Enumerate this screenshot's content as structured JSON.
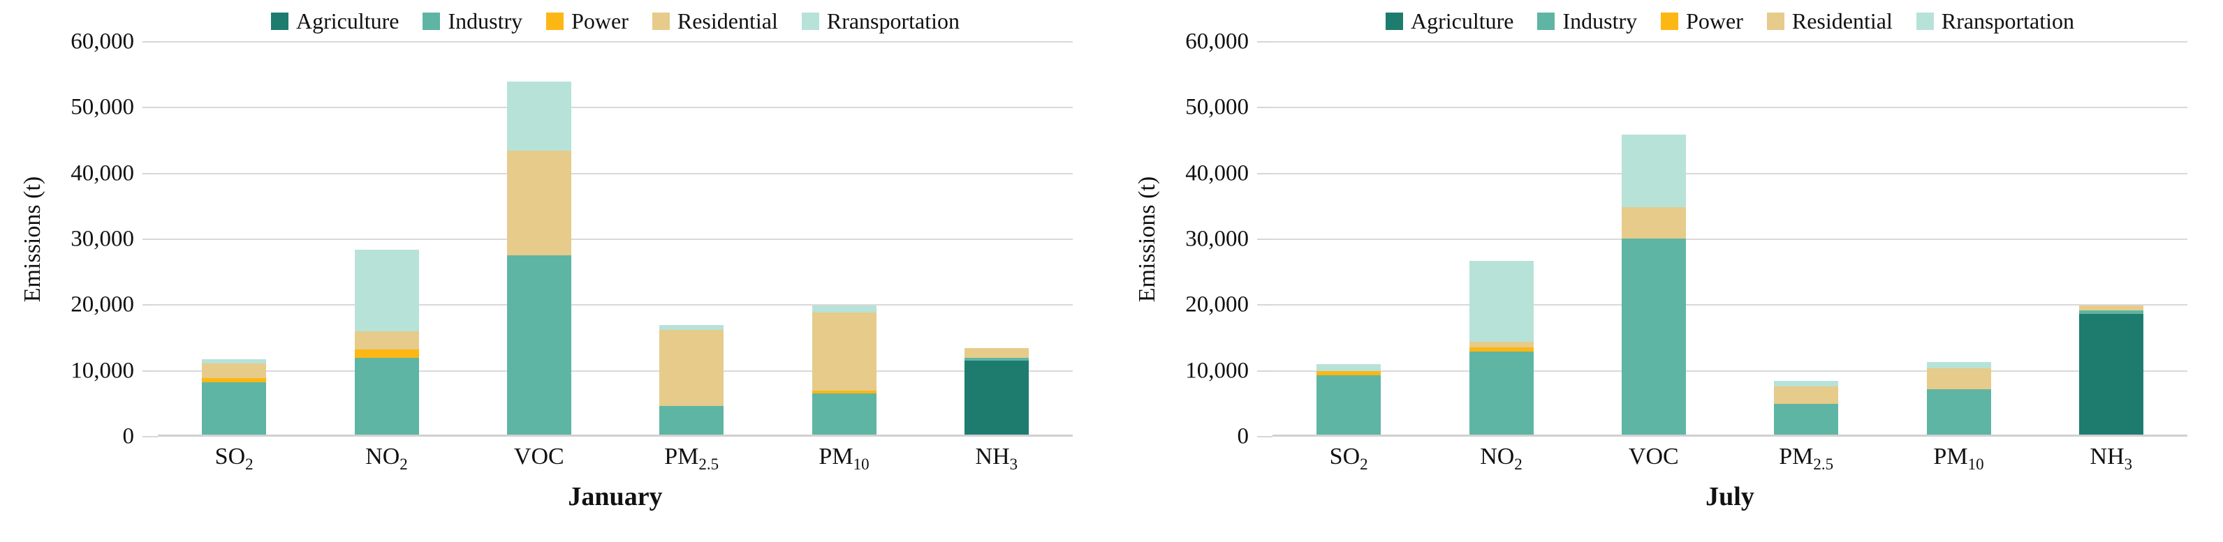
{
  "style": {
    "background": "#ffffff",
    "grid_color": "#d9d9d9",
    "axis_color": "#d0d0d0",
    "text_color": "#111111"
  },
  "chart_data": [
    {
      "type": "bar",
      "stacked": true,
      "title": "January",
      "ylabel": "Emissions (t)",
      "ylim": [
        0,
        60000
      ],
      "ytick_step": 10000,
      "ytick_labels": [
        "0",
        "10,000",
        "20,000",
        "30,000",
        "40,000",
        "50,000",
        "60,000"
      ],
      "grid": true,
      "legend_position": "top",
      "categories": [
        {
          "base": "SO",
          "sub": "2"
        },
        {
          "base": "NO",
          "sub": "2"
        },
        {
          "base": "VOC",
          "sub": ""
        },
        {
          "base": "PM",
          "sub": "2.5"
        },
        {
          "base": "PM",
          "sub": "10"
        },
        {
          "base": "NH",
          "sub": "3"
        }
      ],
      "series": [
        {
          "name": "Agriculture",
          "color": "#1e7c6f",
          "values": [
            0,
            0,
            0,
            0,
            0,
            11200
          ]
        },
        {
          "name": "Industry",
          "color": "#5eb5a4",
          "values": [
            8000,
            11700,
            27200,
            4400,
            6300,
            500
          ]
        },
        {
          "name": "Power",
          "color": "#fdb714",
          "values": [
            600,
            1200,
            0,
            0,
            400,
            0
          ]
        },
        {
          "name": "Residential",
          "color": "#e6cb8b",
          "values": [
            2200,
            2800,
            16000,
            11500,
            11900,
            1500
          ]
        },
        {
          "name": "Rransportation",
          "color": "#b7e2d8",
          "values": [
            600,
            12400,
            10400,
            800,
            1000,
            0
          ]
        }
      ]
    },
    {
      "type": "bar",
      "stacked": true,
      "title": "July",
      "ylabel": "Emissions (t)",
      "ylim": [
        0,
        60000
      ],
      "ytick_step": 10000,
      "ytick_labels": [
        "0",
        "10,000",
        "20,000",
        "30,000",
        "40,000",
        "50,000",
        "60,000"
      ],
      "grid": true,
      "legend_position": "top",
      "categories": [
        {
          "base": "SO",
          "sub": "2"
        },
        {
          "base": "NO",
          "sub": "2"
        },
        {
          "base": "VOC",
          "sub": ""
        },
        {
          "base": "PM",
          "sub": "2.5"
        },
        {
          "base": "PM",
          "sub": "10"
        },
        {
          "base": "NH",
          "sub": "3"
        }
      ],
      "series": [
        {
          "name": "Agriculture",
          "color": "#1e7c6f",
          "values": [
            0,
            0,
            0,
            0,
            0,
            18300
          ]
        },
        {
          "name": "Industry",
          "color": "#5eb5a4",
          "values": [
            9000,
            12600,
            29800,
            4700,
            6900,
            600
          ]
        },
        {
          "name": "Power",
          "color": "#fdb714",
          "values": [
            600,
            600,
            0,
            0,
            0,
            0
          ]
        },
        {
          "name": "Residential",
          "color": "#e6cb8b",
          "values": [
            0,
            900,
            4800,
            2600,
            3200,
            700
          ]
        },
        {
          "name": "Rransportation",
          "color": "#b7e2d8",
          "values": [
            1100,
            12300,
            11000,
            900,
            900,
            0
          ]
        }
      ]
    }
  ]
}
